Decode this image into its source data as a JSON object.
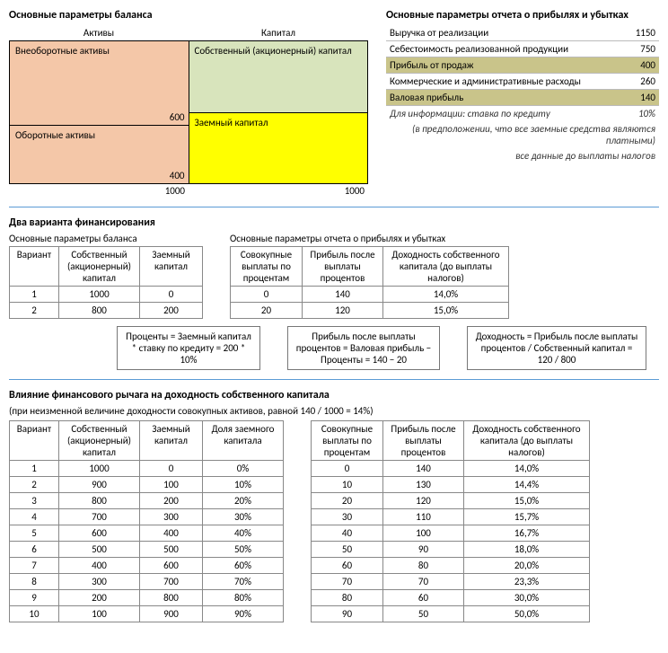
{
  "colors": {
    "noncurrent_assets": "#f4c7a8",
    "current_assets": "#f4c7a8",
    "equity": "#d8e4bc",
    "debt": "#ffff00",
    "pl_highlight": "#c9c48a",
    "hr": "#5b9bd5",
    "border": "#888888"
  },
  "balance": {
    "title": "Основные параметры баланса",
    "header_left": "Активы",
    "header_right": "Капитал",
    "noncurrent_label": "Внеоборотные активы",
    "noncurrent_value": "600",
    "current_label": "Оборотные активы",
    "current_value": "400",
    "equity_label": "Собственный (акционерный) капитал",
    "debt_label": "Заемный капитал",
    "total_left": "1000",
    "total_right": "1000",
    "equity_flex": 5,
    "debt_flex": 5
  },
  "pl": {
    "title": "Основные параметры отчета о прибылях и убытках",
    "rows": [
      {
        "label": "Выручка от реализации",
        "value": "1150",
        "shade": false
      },
      {
        "label": "Себестоимость реализованной продукции",
        "value": "750",
        "shade": false
      },
      {
        "label": "Прибыль от продаж",
        "value": "400",
        "shade": true
      },
      {
        "label": "Коммерческие и административные расходы",
        "value": "260",
        "shade": false
      },
      {
        "label": "Валовая прибыль",
        "value": "140",
        "shade": true
      }
    ],
    "note_rate_label": "Для информации: ставка по кредиту",
    "note_rate_value": "10%",
    "note1": "(в предположении, что все заемные средства являются платными)",
    "note2": "все данные до выплаты налогов"
  },
  "variants": {
    "title": "Два варианта финансирования",
    "left_caption": "Основные параметры баланса",
    "right_caption": "Основные параметры отчета о прибылях и убытках",
    "left_headers": [
      "Вариант",
      "Собственный (акционерный) капитал",
      "Заемный капитал"
    ],
    "left_rows": [
      [
        "1",
        "1000",
        "0"
      ],
      [
        "2",
        "800",
        "200"
      ]
    ],
    "right_headers": [
      "Совокупные выплаты по процентам",
      "Прибыль после выплаты процентов",
      "Доходность собственного капитала (до выплаты налогов)"
    ],
    "right_rows": [
      [
        "0",
        "140",
        "14,0%"
      ],
      [
        "20",
        "120",
        "15,0%"
      ]
    ],
    "formula1": "Проценты = Заемный капитал * ставку по кредиту = 200 * 10%",
    "formula2": "Прибыль после выплаты процентов = Валовая прибыль − Проценты = 140 − 20",
    "formula3": "Доходность = Прибыль после выплаты процентов / Собственный капитал = 120 / 800"
  },
  "leverage": {
    "title": "Влияние финансового рычага на доходность собственного капитала",
    "subtitle": "(при неизменной величине доходности совокупных активов, равной 140 / 1000 = 14%)",
    "left_headers": [
      "Вариант",
      "Собственный (акционерный) капитал",
      "Заемный капитал",
      "Доля заемного капитала"
    ],
    "right_headers": [
      "Совокупные выплаты по процентам",
      "Прибыль после выплаты процентов",
      "Доходность собственного капитала (до выплаты налогов)"
    ],
    "left_rows": [
      [
        "1",
        "1000",
        "0",
        "0%"
      ],
      [
        "2",
        "900",
        "100",
        "10%"
      ],
      [
        "3",
        "800",
        "200",
        "20%"
      ],
      [
        "4",
        "700",
        "300",
        "30%"
      ],
      [
        "5",
        "600",
        "400",
        "40%"
      ],
      [
        "6",
        "500",
        "500",
        "50%"
      ],
      [
        "7",
        "400",
        "600",
        "60%"
      ],
      [
        "8",
        "300",
        "700",
        "70%"
      ],
      [
        "9",
        "200",
        "800",
        "80%"
      ],
      [
        "10",
        "100",
        "900",
        "90%"
      ]
    ],
    "right_rows": [
      [
        "0",
        "140",
        "14,0%"
      ],
      [
        "10",
        "130",
        "14,4%"
      ],
      [
        "20",
        "120",
        "15,0%"
      ],
      [
        "30",
        "110",
        "15,7%"
      ],
      [
        "40",
        "100",
        "16,7%"
      ],
      [
        "50",
        "90",
        "18,0%"
      ],
      [
        "60",
        "80",
        "20,0%"
      ],
      [
        "70",
        "70",
        "23,3%"
      ],
      [
        "80",
        "60",
        "30,0%"
      ],
      [
        "90",
        "50",
        "50,0%"
      ]
    ]
  }
}
